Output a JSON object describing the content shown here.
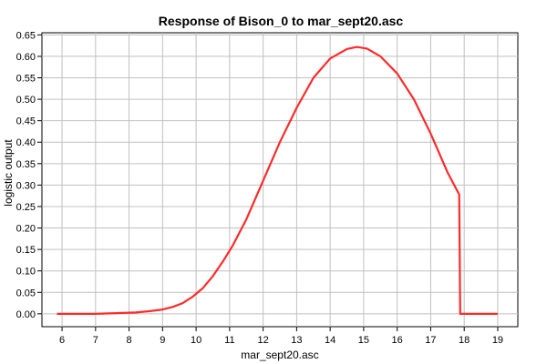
{
  "chart_data": {
    "type": "line",
    "title": "Response of Bison_0 to mar_sept20.asc",
    "xlabel": "mar_sept20.asc",
    "ylabel": "logistic output",
    "xlim": [
      5.4,
      19.6
    ],
    "ylim": [
      -0.03,
      0.655
    ],
    "x_ticks": [
      6,
      7,
      8,
      9,
      10,
      11,
      12,
      13,
      14,
      15,
      16,
      17,
      18,
      19
    ],
    "y_ticks": [
      0.0,
      0.05,
      0.1,
      0.15,
      0.2,
      0.25,
      0.3,
      0.35,
      0.4,
      0.45,
      0.5,
      0.55,
      0.6,
      0.65
    ],
    "y_tick_labels": [
      "0.00",
      "0.05",
      "0.10",
      "0.15",
      "0.20",
      "0.25",
      "0.30",
      "0.35",
      "0.40",
      "0.45",
      "0.50",
      "0.55",
      "0.60",
      "0.65"
    ],
    "grid": true,
    "series": [
      {
        "color": "#ff2a2a",
        "x": [
          5.85,
          6.5,
          7.0,
          7.4,
          7.8,
          8.2,
          8.6,
          9.0,
          9.3,
          9.6,
          9.9,
          10.2,
          10.5,
          10.8,
          11.1,
          11.5,
          12.0,
          12.5,
          13.0,
          13.5,
          14.0,
          14.5,
          14.8,
          15.1,
          15.5,
          16.0,
          16.5,
          17.0,
          17.5,
          17.85,
          17.88,
          18.0,
          18.5,
          19.0
        ],
        "y": [
          0.0,
          0.0,
          0.0,
          0.001,
          0.002,
          0.003,
          0.006,
          0.01,
          0.016,
          0.025,
          0.04,
          0.06,
          0.088,
          0.122,
          0.16,
          0.22,
          0.31,
          0.4,
          0.48,
          0.55,
          0.595,
          0.617,
          0.622,
          0.618,
          0.6,
          0.56,
          0.5,
          0.42,
          0.33,
          0.278,
          0.0,
          0.0,
          0.0,
          0.0
        ]
      }
    ]
  }
}
